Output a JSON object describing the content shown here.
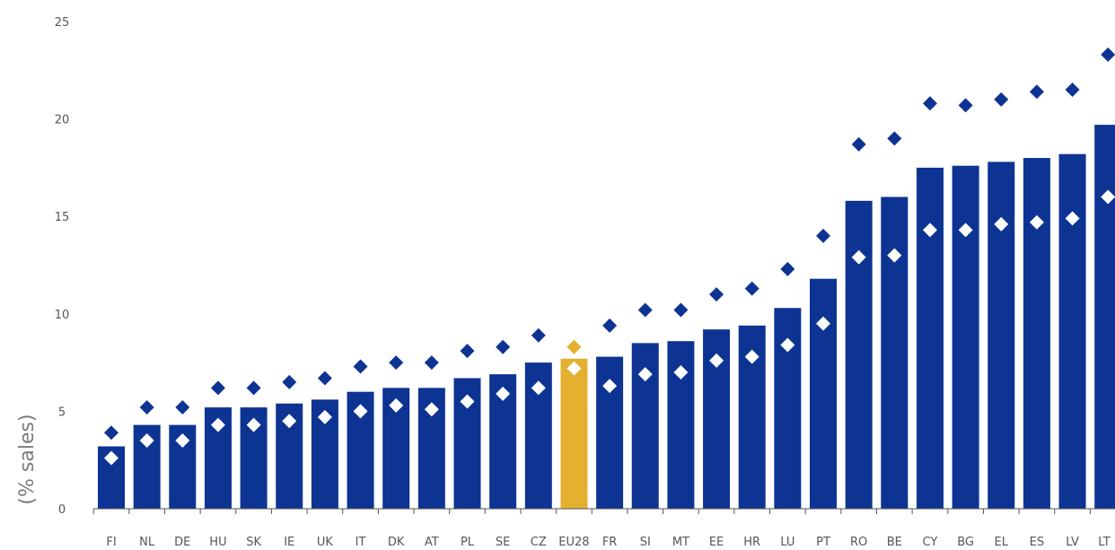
{
  "chart_data": {
    "type": "bar",
    "ylabel": "(% sales)",
    "ylim": [
      0,
      25
    ],
    "yticks": [
      0,
      5,
      10,
      15,
      20,
      25
    ],
    "grid": false,
    "colors": {
      "bar": "#0d3492",
      "highlight": "#e3b030",
      "marker_high": "#0d3492",
      "marker_low": "#ffffff",
      "axis": "#555555"
    },
    "highlight_category": "EU28",
    "categories": [
      "FI",
      "NL",
      "DE",
      "HU",
      "SK",
      "IE",
      "UK",
      "IT",
      "DK",
      "AT",
      "PL",
      "SE",
      "CZ",
      "EU28",
      "FR",
      "SI",
      "MT",
      "EE",
      "HR",
      "LU",
      "PT",
      "RO",
      "BE",
      "CY",
      "BG",
      "EL",
      "ES",
      "LV",
      "LT"
    ],
    "series": [
      {
        "kind": "bar",
        "values": [
          3.2,
          4.3,
          4.3,
          5.2,
          5.2,
          5.4,
          5.6,
          6.0,
          6.2,
          6.2,
          6.7,
          6.9,
          7.5,
          7.7,
          7.8,
          8.5,
          8.6,
          9.2,
          9.4,
          10.3,
          11.8,
          15.8,
          16.0,
          17.5,
          17.6,
          17.8,
          18.0,
          18.2,
          19.7
        ]
      },
      {
        "kind": "marker-high",
        "values": [
          3.9,
          5.2,
          5.2,
          6.2,
          6.2,
          6.5,
          6.7,
          7.3,
          7.5,
          7.5,
          8.1,
          8.3,
          8.9,
          8.3,
          9.4,
          10.2,
          10.2,
          11.0,
          11.3,
          12.3,
          14.0,
          18.7,
          19.0,
          20.8,
          20.7,
          21.0,
          21.4,
          21.5,
          23.3
        ]
      },
      {
        "kind": "marker-low",
        "values": [
          2.6,
          3.5,
          3.5,
          4.3,
          4.3,
          4.5,
          4.7,
          5.0,
          5.3,
          5.1,
          5.5,
          5.9,
          6.2,
          7.2,
          6.3,
          6.9,
          7.0,
          7.6,
          7.8,
          8.4,
          9.5,
          12.9,
          13.0,
          14.3,
          14.3,
          14.6,
          14.7,
          14.9,
          16.0
        ]
      }
    ]
  }
}
